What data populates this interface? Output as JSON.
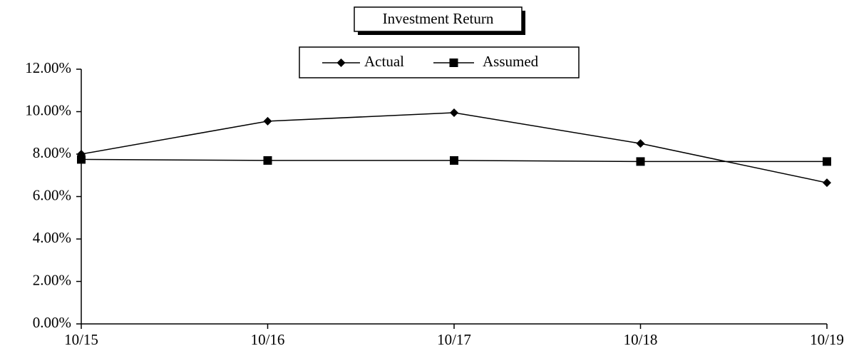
{
  "chart_data": {
    "type": "line",
    "title": "Investment Return",
    "categories": [
      "10/15",
      "10/16",
      "10/17",
      "10/18",
      "10/19"
    ],
    "series": [
      {
        "name": "Actual",
        "color": "#000000",
        "marker": "diamond",
        "values": [
          8.0,
          9.55,
          9.95,
          8.5,
          6.65
        ]
      },
      {
        "name": "Assumed",
        "color": "#000000",
        "marker": "square",
        "values": [
          7.75,
          7.7,
          7.7,
          7.65,
          7.65
        ]
      }
    ],
    "ylim": [
      0,
      12
    ],
    "yticks": [
      {
        "value": 0,
        "label": "0.00%"
      },
      {
        "value": 2,
        "label": "2.00%"
      },
      {
        "value": 4,
        "label": "4.00%"
      },
      {
        "value": 6,
        "label": "6.00%"
      },
      {
        "value": 8,
        "label": "8.00%"
      },
      {
        "value": 10,
        "label": "10.00%"
      },
      {
        "value": 12,
        "label": "12.00%"
      }
    ],
    "grid": false,
    "legend": "top"
  }
}
